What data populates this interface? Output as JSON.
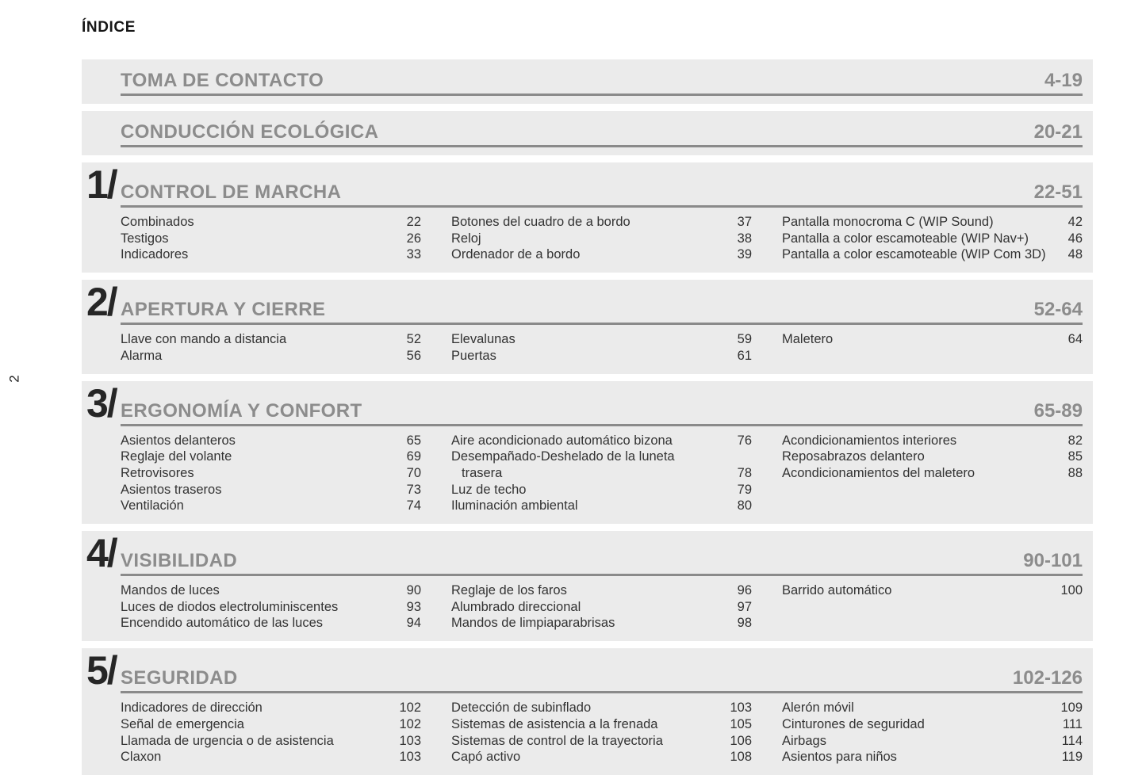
{
  "page": {
    "heading": "ÍNDICE",
    "edge_page_number": "2"
  },
  "colors": {
    "section_background": "#ebebeb",
    "heading_gray": "#8c8c8c",
    "rule_gray": "#8a8a8a",
    "chapter_number_dark": "#262626",
    "entry_text": "#333333"
  },
  "sections": [
    {
      "number": "",
      "title": "TOMA DE CONTACTO",
      "pages": "4-19",
      "columns": []
    },
    {
      "number": "",
      "title": "CONDUCCIÓN ECOLÓGICA",
      "pages": "20-21",
      "columns": []
    },
    {
      "number": "1/",
      "title": "CONTROL DE MARCHA",
      "pages": "22-51",
      "columns": [
        [
          {
            "label": "Combinados",
            "page": "22"
          },
          {
            "label": "Testigos",
            "page": "26"
          },
          {
            "label": "Indicadores",
            "page": "33"
          }
        ],
        [
          {
            "label": "Botones del cuadro de a bordo",
            "page": "37"
          },
          {
            "label": "Reloj",
            "page": "38"
          },
          {
            "label": "Ordenador de a bordo",
            "page": "39"
          }
        ],
        [
          {
            "label": "Pantalla monocroma C (WIP Sound)",
            "page": "42"
          },
          {
            "label": "Pantalla a color escamoteable (WIP Nav+)",
            "page": "46"
          },
          {
            "label": "Pantalla a color escamoteable (WIP Com 3D)",
            "page": "48"
          }
        ]
      ]
    },
    {
      "number": "2/",
      "title": "APERTURA Y CIERRE",
      "pages": "52-64",
      "columns": [
        [
          {
            "label": "Llave con mando a distancia",
            "page": "52"
          },
          {
            "label": "Alarma",
            "page": "56"
          }
        ],
        [
          {
            "label": "Elevalunas",
            "page": "59"
          },
          {
            "label": "Puertas",
            "page": "61"
          }
        ],
        [
          {
            "label": "Maletero",
            "page": "64"
          }
        ]
      ]
    },
    {
      "number": "3/",
      "title": "ERGONOMÍA Y CONFORT",
      "pages": "65-89",
      "columns": [
        [
          {
            "label": "Asientos delanteros",
            "page": "65"
          },
          {
            "label": "Reglaje del volante",
            "page": "69"
          },
          {
            "label": "Retrovisores",
            "page": "70"
          },
          {
            "label": "Asientos traseros",
            "page": "73"
          },
          {
            "label": "Ventilación",
            "page": "74"
          }
        ],
        [
          {
            "label": "Aire acondicionado automático bizona",
            "page": "76"
          },
          {
            "label": "Desempañado-Deshelado de la luneta trasera",
            "page": "78"
          },
          {
            "label": "Luz de techo",
            "page": "79"
          },
          {
            "label": "Iluminación ambiental",
            "page": "80"
          }
        ],
        [
          {
            "label": "Acondicionamientos interiores",
            "page": "82"
          },
          {
            "label": "Reposabrazos delantero",
            "page": "85"
          },
          {
            "label": "Acondicionamientos del maletero",
            "page": "88"
          }
        ]
      ]
    },
    {
      "number": "4/",
      "title": "VISIBILIDAD",
      "pages": "90-101",
      "columns": [
        [
          {
            "label": "Mandos de luces",
            "page": "90"
          },
          {
            "label": "Luces de diodos electroluminiscentes",
            "page": "93"
          },
          {
            "label": "Encendido automático de las luces",
            "page": "94"
          }
        ],
        [
          {
            "label": "Reglaje de los faros",
            "page": "96"
          },
          {
            "label": "Alumbrado direccional",
            "page": "97"
          },
          {
            "label": "Mandos de limpiaparabrisas",
            "page": "98"
          }
        ],
        [
          {
            "label": "Barrido automático",
            "page": "100"
          }
        ]
      ]
    },
    {
      "number": "5/",
      "title": "SEGURIDAD",
      "pages": "102-126",
      "columns": [
        [
          {
            "label": "Indicadores de dirección",
            "page": "102"
          },
          {
            "label": "Señal de emergencia",
            "page": "102"
          },
          {
            "label": "Llamada de urgencia o de asistencia",
            "page": "103"
          },
          {
            "label": "Claxon",
            "page": "103"
          }
        ],
        [
          {
            "label": "Detección de subinflado",
            "page": "103"
          },
          {
            "label": "Sistemas de asistencia a la frenada",
            "page": "105"
          },
          {
            "label": "Sistemas de control de la trayectoria",
            "page": "106"
          },
          {
            "label": "Capó activo",
            "page": "108"
          }
        ],
        [
          {
            "label": "Alerón móvil",
            "page": "109"
          },
          {
            "label": "Cinturones de seguridad",
            "page": "111"
          },
          {
            "label": "Airbags",
            "page": "114"
          },
          {
            "label": "Asientos para niños",
            "page": "119"
          }
        ]
      ]
    }
  ]
}
